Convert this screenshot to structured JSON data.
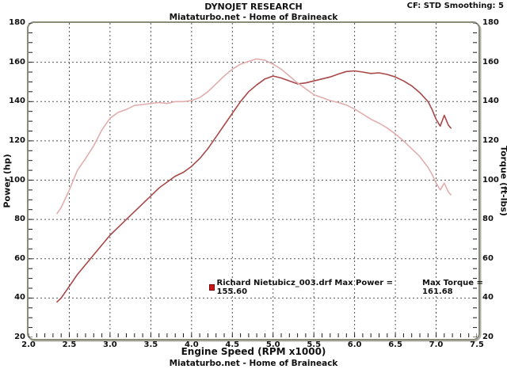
{
  "header": {
    "title": "DYNOJET RESEARCH",
    "subtitle": "Miataturbo.net - Home of Braineack",
    "settings": "CF: STD  Smoothing: 5"
  },
  "footer": {
    "xaxis_title": "Engine Speed (RPM x1000)",
    "branding": "Miataturbo.net - Home of Braineack"
  },
  "axes": {
    "left_title": "Power (hp)",
    "right_title": "Torque (ft-lbs)",
    "y_tick_labels": [
      "180",
      "160",
      "140",
      "120",
      "100",
      "80",
      "60",
      "40",
      "20"
    ],
    "x_tick_labels": [
      "2.0",
      "2.5",
      "3.0",
      "3.5",
      "4.0",
      "4.5",
      "5.0",
      "5.5",
      "6.0",
      "6.5",
      "7.0",
      "7.5"
    ]
  },
  "legend": {
    "marker_color": "#cc1616",
    "text1": "Richard Nietubicz_003.drf Max Power = 155.60",
    "text2": "Max Torque = 161.68"
  },
  "chart_data": {
    "type": "line",
    "title": "DYNOJET RESEARCH",
    "xlabel": "Engine Speed (RPM x1000)",
    "ylabel_left": "Power (hp)",
    "ylabel_right": "Torque (ft-lbs)",
    "xlim": [
      2.0,
      7.5
    ],
    "ylim": [
      20,
      180
    ],
    "grid": true,
    "grid_style": "dotted",
    "minor_x_step": 0.1,
    "minor_y_step": 5,
    "legend_position": "inside-bottom-center",
    "x": [
      2.35,
      2.4,
      2.5,
      2.6,
      2.7,
      2.8,
      2.9,
      3.0,
      3.1,
      3.2,
      3.3,
      3.4,
      3.5,
      3.6,
      3.7,
      3.8,
      3.9,
      4.0,
      4.1,
      4.2,
      4.3,
      4.4,
      4.5,
      4.6,
      4.7,
      4.8,
      4.9,
      5.0,
      5.1,
      5.2,
      5.3,
      5.4,
      5.5,
      5.6,
      5.7,
      5.8,
      5.9,
      6.0,
      6.1,
      6.2,
      6.3,
      6.4,
      6.5,
      6.6,
      6.7,
      6.8,
      6.9,
      6.95,
      7.0,
      7.05,
      7.1,
      7.15,
      7.18
    ],
    "series": [
      {
        "id": "power-curve",
        "name": "Power (hp)",
        "axis": "left",
        "color": "#a84848",
        "max_value": 155.6,
        "values": [
          38,
          40,
          46,
          52,
          57,
          62,
          67,
          72,
          76,
          80,
          84,
          88,
          92,
          96,
          99,
          102,
          104,
          107,
          111,
          116,
          122,
          128,
          134,
          140,
          145,
          148.5,
          151.5,
          153,
          152,
          150.5,
          149,
          149.5,
          150.5,
          151.5,
          152.5,
          154,
          155.3,
          155.6,
          155,
          154.3,
          154.6,
          153.8,
          152.5,
          150.5,
          148,
          144.5,
          140,
          136,
          131,
          127.5,
          133,
          128,
          126.5
        ]
      },
      {
        "id": "torque-curve",
        "name": "Torque (ft-lbs)",
        "axis": "right",
        "color": "#e2adad",
        "max_value": 161.68,
        "values": [
          83,
          86,
          95,
          105,
          111,
          117.5,
          125.5,
          131.5,
          134.5,
          136,
          138,
          138.5,
          139,
          139.5,
          139,
          140,
          140,
          140.5,
          142,
          145,
          149,
          153,
          156.5,
          159,
          160.5,
          161.7,
          161,
          159,
          156.5,
          153,
          149.5,
          146.5,
          143.5,
          142,
          140.5,
          139.5,
          138.2,
          136.2,
          133.6,
          131,
          129,
          126.5,
          123.5,
          120,
          116,
          112,
          106.5,
          103,
          98.5,
          95,
          98.5,
          94,
          92.5
        ]
      }
    ]
  }
}
